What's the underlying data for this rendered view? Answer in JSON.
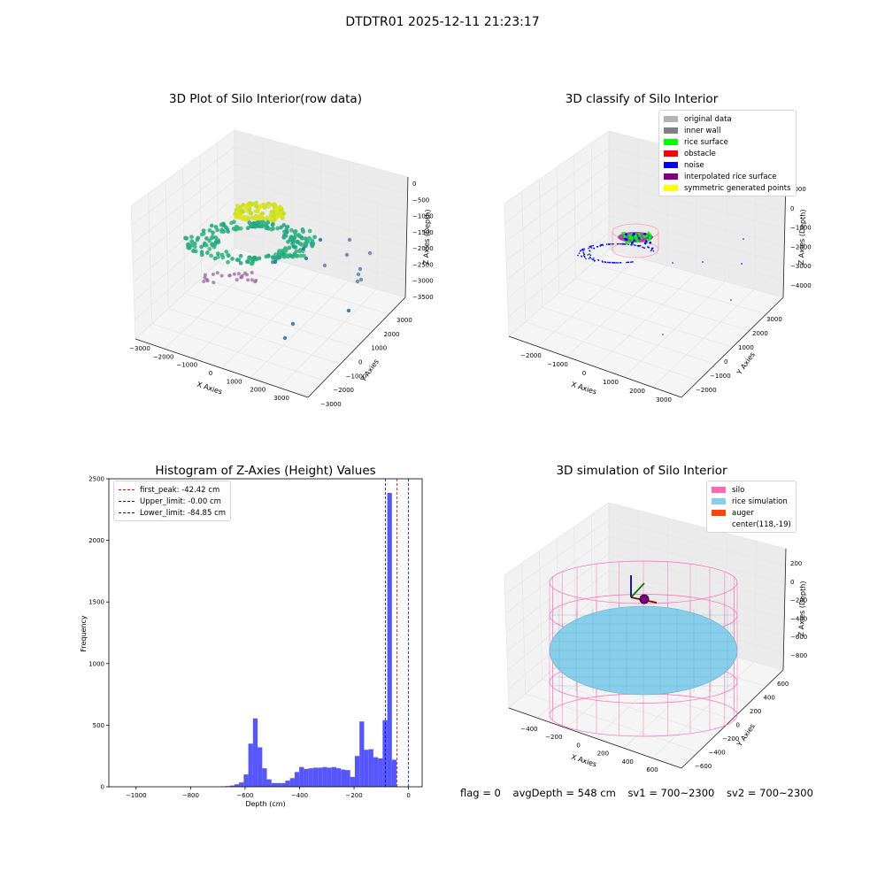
{
  "figure": {
    "title": "DTDTR01 2025-12-11 21:23:17"
  },
  "footer": {
    "flag": "flag = 0",
    "avg_depth": "avgDepth = 548 cm",
    "sv1": "sv1 = 700~2300",
    "sv2": "sv2 = 700~2300"
  },
  "chart_data": [
    {
      "type": "scatter",
      "title": "3D Plot of Silo Interior(row data)",
      "xlabel": "X Axies",
      "ylabel": "Y Axies",
      "zlabel": "Z Axies (Depth)",
      "x_ticks": [
        "−3000",
        "−2000",
        "−1000",
        "0",
        "1000",
        "2000",
        "3000"
      ],
      "y_ticks": [
        "−3000",
        "−2000",
        "−1000",
        "0",
        "1000",
        "2000",
        "3000"
      ],
      "z_ticks": [
        "−3500",
        "−3000",
        "−2500",
        "−2000",
        "−1500",
        "−1000",
        "−500",
        "0"
      ],
      "colormap": "viridis"
    },
    {
      "type": "scatter",
      "title": "3D classify of Silo Interior",
      "xlabel": "X Axies",
      "ylabel": "Y Axies",
      "zlabel": "Z Axies (Depth)",
      "x_ticks": [
        "−2000",
        "−1000",
        "0",
        "1000",
        "2000",
        "3000"
      ],
      "y_ticks": [
        "−2000",
        "−1000",
        "0",
        "1000",
        "2000",
        "3000"
      ],
      "z_ticks": [
        "−4000",
        "−3000",
        "−2000",
        "−1000",
        "0",
        "1000"
      ],
      "legend_position": "top-right",
      "legend": [
        {
          "label": "original data",
          "color": "#b3b3b3"
        },
        {
          "label": "inner wall",
          "color": "#808080"
        },
        {
          "label": "rice surface",
          "color": "#00ff00"
        },
        {
          "label": "obstacle",
          "color": "#ff0000"
        },
        {
          "label": "noise",
          "color": "#0000ff"
        },
        {
          "label": "interpolated rice surface",
          "color": "#800080"
        },
        {
          "label": "symmetric generated points",
          "color": "#ffff00"
        }
      ]
    },
    {
      "type": "bar",
      "title": "Histogram of Z-Axies (Height) Values",
      "xlabel": "Depth (cm)",
      "ylabel": "Frequency",
      "xlim": [
        -1100,
        50
      ],
      "ylim": [
        0,
        2500
      ],
      "x_ticks": [
        "−1000",
        "−800",
        "−600",
        "−400",
        "−200",
        "0"
      ],
      "y_ticks": [
        "0",
        "500",
        "1000",
        "1500",
        "2000",
        "2500"
      ],
      "bar_color": "#4d4dff",
      "bin_width": 17,
      "bins": [
        [
          -690,
          3
        ],
        [
          -673,
          5
        ],
        [
          -656,
          10
        ],
        [
          -639,
          20
        ],
        [
          -622,
          35
        ],
        [
          -605,
          100
        ],
        [
          -588,
          350
        ],
        [
          -571,
          555
        ],
        [
          -554,
          320
        ],
        [
          -537,
          150
        ],
        [
          -520,
          60
        ],
        [
          -503,
          30
        ],
        [
          -486,
          30
        ],
        [
          -469,
          30
        ],
        [
          -452,
          50
        ],
        [
          -435,
          70
        ],
        [
          -418,
          120
        ],
        [
          -401,
          160
        ],
        [
          -384,
          145
        ],
        [
          -367,
          150
        ],
        [
          -350,
          155
        ],
        [
          -333,
          155
        ],
        [
          -316,
          160
        ],
        [
          -299,
          155
        ],
        [
          -282,
          160
        ],
        [
          -265,
          150
        ],
        [
          -248,
          140
        ],
        [
          -231,
          135
        ],
        [
          -214,
          80
        ],
        [
          -197,
          250
        ],
        [
          -180,
          530
        ],
        [
          -163,
          300
        ],
        [
          -146,
          305
        ],
        [
          -129,
          240
        ],
        [
          -112,
          230
        ],
        [
          -95,
          540
        ],
        [
          -78,
          2385
        ],
        [
          -61,
          220
        ],
        [
          -44,
          0
        ]
      ],
      "legend_position": "top-left",
      "vlines": [
        {
          "label": "first_peak: -42.42 cm",
          "x": -42.42,
          "color": "#ff0000"
        },
        {
          "label": "Upper_limit: -0.00 cm",
          "x": 0,
          "color": "#0000ff"
        },
        {
          "label": "Lower_limit: -84.85 cm",
          "x": -84.85,
          "color": "#0000ff"
        }
      ]
    },
    {
      "type": "scatter",
      "title": "3D simulation of Silo Interior",
      "xlabel": "X Axies",
      "ylabel": "Y Axies",
      "zlabel": "Z Axies (Depth)",
      "x_ticks": [
        "−400",
        "−200",
        "0",
        "200",
        "400",
        "600"
      ],
      "y_ticks": [
        "−600",
        "−400",
        "−200",
        "0",
        "200",
        "400",
        "600"
      ],
      "z_ticks": [
        "−800",
        "−600",
        "−400",
        "−200",
        "0",
        "200"
      ],
      "legend_position": "top-right",
      "legend": [
        {
          "label": "silo",
          "color": "#ff69b4"
        },
        {
          "label": "rice simulation",
          "color": "#87ceeb"
        },
        {
          "label": "auger",
          "color": "#ff4500"
        },
        {
          "label": "center(118,-19)",
          "color": ""
        }
      ]
    }
  ]
}
